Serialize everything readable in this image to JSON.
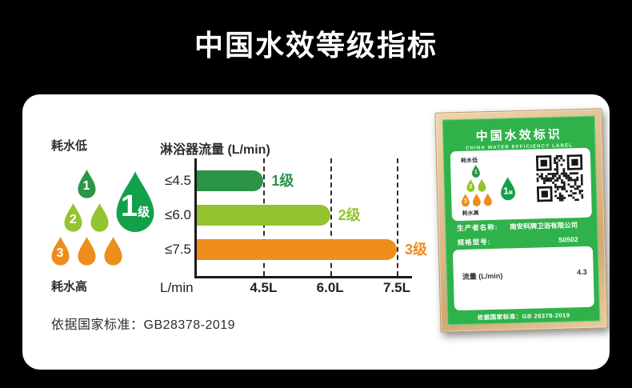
{
  "page": {
    "title": "中国水效等级指标"
  },
  "colors": {
    "background": "#000000",
    "card": "#ffffff",
    "grade1": "#2b9447",
    "grade2": "#93c42f",
    "grade3": "#ee8d1c",
    "big_drop": "#12a04b",
    "label_green": "#2fb24a",
    "text_dark": "#2e2e2e"
  },
  "legend": {
    "low_label": "耗水低",
    "high_label": "耗水高",
    "drops": [
      {
        "grade": "1",
        "count": 1,
        "color": "#2b9447"
      },
      {
        "grade": "2",
        "count": 2,
        "color": "#93c42f"
      },
      {
        "grade": "3",
        "count": 3,
        "color": "#ee8d1c"
      }
    ],
    "big_drop": {
      "number": "1",
      "suffix": "级"
    }
  },
  "chart_data": {
    "type": "bar",
    "title": "淋浴器流量 (L/min)",
    "categories": [
      "≤4.5",
      "≤6.0",
      "≤7.5"
    ],
    "values": [
      4.5,
      6.0,
      7.5
    ],
    "bar_labels": [
      "1级",
      "2级",
      "3级"
    ],
    "bar_colors": [
      "#2b9447",
      "#93c42f",
      "#ee8d1c"
    ],
    "xlabel": "L/min",
    "x_ticks": [
      {
        "value": 4.5,
        "label": "4.5L"
      },
      {
        "value": 6.0,
        "label": "6.0L"
      },
      {
        "value": 7.5,
        "label": "7.5L"
      }
    ],
    "xlim": [
      3.0,
      7.5
    ],
    "grid": "vertical-dashed",
    "legend_position": "none"
  },
  "standard_note": "依据国家标准：GB28378-2019",
  "label": {
    "title": "中国水效标识",
    "subtitle": "CHINA WATER EFFICIENCY LABEL",
    "low_label": "耗水低",
    "high_label": "耗水高",
    "big_drop": {
      "number": "1",
      "suffix": "级"
    },
    "fields": [
      {
        "name": "生产者名称:",
        "value": "南安科牌卫浴有限公司"
      },
      {
        "name": "规格型号:",
        "value": "S0502"
      }
    ],
    "flow_row": {
      "name": "流量 (L/min)",
      "value": "4.3"
    },
    "footer": "依据国家标准：GB 28378-2019"
  }
}
